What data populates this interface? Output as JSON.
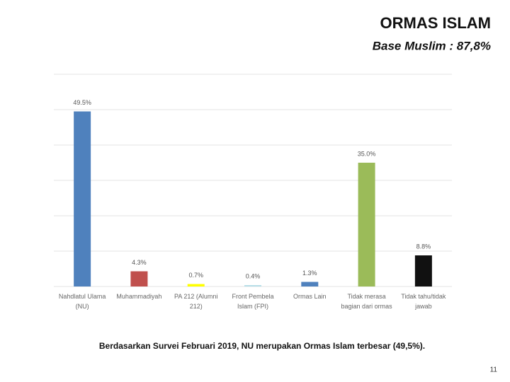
{
  "chart_data": {
    "type": "bar",
    "title": "ORMAS ISLAM",
    "subtitle": "Base Muslim : 87,8%",
    "categories": [
      "Nahdlatul Ulama (NU)",
      "Muhammadiyah",
      "PA 212 (Alumni 212)",
      "Front Pembela Islam (FPI)",
      "Ormas Lain",
      "Tidak merasa bagian dari ormas",
      "Tidak tahu/tidak jawab"
    ],
    "values": [
      49.5,
      4.3,
      0.7,
      0.4,
      1.3,
      35.0,
      8.8
    ],
    "value_labels": [
      "49.5%",
      "4.3%",
      "0.7%",
      "0.4%",
      "1.3%",
      "35.0%",
      "8.8%"
    ],
    "colors": [
      "#4f81bd",
      "#c0504d",
      "#ffff00",
      "#b7dee8",
      "#4f81bd",
      "#9bbb59",
      "#111111"
    ],
    "ylim": [
      0,
      60
    ],
    "yticks": [
      0,
      10,
      20,
      30,
      40,
      50,
      60
    ],
    "ytick_labels": false,
    "grid": true
  },
  "footnote": "Berdasarkan Survei Februari 2019, NU merupakan Ormas Islam terbesar (49,5%).",
  "page_number": "11"
}
